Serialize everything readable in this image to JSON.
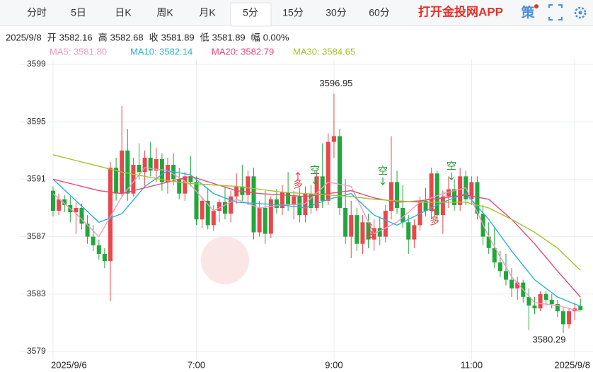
{
  "tabs": [
    "分时",
    "5日",
    "日K",
    "周K",
    "月K",
    "5分",
    "15分",
    "30分",
    "60分"
  ],
  "active_tab": "5分",
  "brand": "打开金投网APP",
  "strategy": "策",
  "info": {
    "date": "2025/9/8",
    "fields": [
      {
        "label": "开",
        "value": "3582.16"
      },
      {
        "label": "高",
        "value": "3582.68"
      },
      {
        "label": "收",
        "value": "3581.89"
      },
      {
        "label": "低",
        "value": "3581.89"
      },
      {
        "label": "幅",
        "value": "0.00%"
      }
    ]
  },
  "chart_data": {
    "type": "candlestick",
    "ohlc": [
      [
        3590.2,
        3590.5,
        3588.4,
        3588.8
      ],
      [
        3588.8,
        3590.0,
        3588.5,
        3589.6
      ],
      [
        3589.6,
        3589.9,
        3588.7,
        3589.2
      ],
      [
        3589.2,
        3589.8,
        3588.0,
        3588.7
      ],
      [
        3588.7,
        3589.4,
        3587.2,
        3589.0
      ],
      [
        3589.0,
        3589.3,
        3587.5,
        3587.9
      ],
      [
        3587.9,
        3588.5,
        3586.5,
        3587.0
      ],
      [
        3587.0,
        3587.8,
        3586.0,
        3586.4
      ],
      [
        3586.4,
        3586.8,
        3585.4,
        3585.8
      ],
      [
        3585.8,
        3586.2,
        3584.8,
        3585.3
      ],
      [
        3585.3,
        3592.2,
        3582.5,
        3591.8
      ],
      [
        3591.8,
        3592.5,
        3589.5,
        3590.0
      ],
      [
        3590.0,
        3596.1,
        3589.8,
        3593.0
      ],
      [
        3593.0,
        3594.5,
        3589.5,
        3590.0
      ],
      [
        3590.0,
        3592.5,
        3589.8,
        3592.0
      ],
      [
        3592.0,
        3593.5,
        3591.0,
        3591.5
      ],
      [
        3591.5,
        3593.0,
        3590.5,
        3592.5
      ],
      [
        3592.5,
        3593.6,
        3591.2,
        3591.6
      ],
      [
        3591.6,
        3593.2,
        3590.8,
        3592.4
      ],
      [
        3592.4,
        3592.8,
        3590.2,
        3590.8
      ],
      [
        3590.8,
        3592.5,
        3590.0,
        3592.0
      ],
      [
        3592.0,
        3592.8,
        3590.6,
        3591.0
      ],
      [
        3591.0,
        3591.8,
        3589.6,
        3590.0
      ],
      [
        3590.0,
        3591.5,
        3589.5,
        3591.2
      ],
      [
        3591.2,
        3592.6,
        3590.5,
        3590.8
      ],
      [
        3590.8,
        3591.2,
        3587.8,
        3588.2
      ],
      [
        3588.2,
        3589.8,
        3587.6,
        3589.5
      ],
      [
        3589.5,
        3590.4,
        3587.5,
        3587.8
      ],
      [
        3587.8,
        3589.2,
        3587.4,
        3588.8
      ],
      [
        3588.8,
        3589.6,
        3588.0,
        3589.4
      ],
      [
        3589.4,
        3590.5,
        3588.2,
        3588.6
      ],
      [
        3588.6,
        3590.2,
        3588.0,
        3589.8
      ],
      [
        3589.8,
        3591.4,
        3589.3,
        3590.5
      ],
      [
        3590.5,
        3592.0,
        3589.5,
        3589.9
      ],
      [
        3589.9,
        3591.6,
        3589.2,
        3591.2
      ],
      [
        3591.2,
        3591.8,
        3586.8,
        3587.3
      ],
      [
        3587.3,
        3589.5,
        3587.0,
        3589.0
      ],
      [
        3589.0,
        3590.2,
        3586.5,
        3587.2
      ],
      [
        3587.2,
        3589.8,
        3586.9,
        3589.6
      ],
      [
        3589.6,
        3590.3,
        3588.6,
        3589.0
      ],
      [
        3589.0,
        3590.6,
        3588.5,
        3590.1
      ],
      [
        3590.1,
        3591.5,
        3588.8,
        3589.2
      ],
      [
        3589.2,
        3590.2,
        3588.2,
        3589.8
      ],
      [
        3589.8,
        3590.4,
        3588.0,
        3588.5
      ],
      [
        3588.5,
        3590.5,
        3588.0,
        3590.0
      ],
      [
        3590.0,
        3590.6,
        3588.6,
        3589.0
      ],
      [
        3589.0,
        3591.6,
        3588.8,
        3591.2
      ],
      [
        3591.2,
        3593.5,
        3589.0,
        3589.5
      ],
      [
        3589.5,
        3594.2,
        3589.2,
        3593.6
      ],
      [
        3593.6,
        3596.95,
        3592.5,
        3594.0
      ],
      [
        3594.0,
        3594.5,
        3588.5,
        3589.0
      ],
      [
        3589.0,
        3591.0,
        3586.5,
        3587.0
      ],
      [
        3587.0,
        3589.5,
        3585.5,
        3588.5
      ],
      [
        3588.5,
        3589.0,
        3586.0,
        3586.5
      ],
      [
        3586.5,
        3588.5,
        3585.8,
        3588.0
      ],
      [
        3588.0,
        3588.6,
        3586.2,
        3586.8
      ],
      [
        3586.8,
        3588.2,
        3586.0,
        3587.6
      ],
      [
        3587.6,
        3588.4,
        3586.4,
        3587.0
      ],
      [
        3587.0,
        3589.2,
        3586.6,
        3588.8
      ],
      [
        3588.8,
        3594.0,
        3588.2,
        3590.8
      ],
      [
        3590.8,
        3591.6,
        3588.6,
        3589.0
      ],
      [
        3589.0,
        3590.6,
        3587.6,
        3588.0
      ],
      [
        3588.0,
        3588.5,
        3585.8,
        3586.8
      ],
      [
        3586.8,
        3588.2,
        3586.2,
        3587.8
      ],
      [
        3587.8,
        3589.8,
        3587.4,
        3589.5
      ],
      [
        3589.5,
        3590.4,
        3588.4,
        3588.8
      ],
      [
        3588.8,
        3591.8,
        3588.2,
        3591.4
      ],
      [
        3591.4,
        3591.6,
        3588.0,
        3588.5
      ],
      [
        3588.5,
        3590.2,
        3587.2,
        3589.8
      ],
      [
        3589.8,
        3591.2,
        3589.0,
        3590.3
      ],
      [
        3590.3,
        3591.0,
        3588.8,
        3589.2
      ],
      [
        3589.2,
        3591.8,
        3588.8,
        3591.2
      ],
      [
        3591.2,
        3591.6,
        3589.2,
        3589.6
      ],
      [
        3589.6,
        3591.2,
        3589.2,
        3590.8
      ],
      [
        3590.8,
        3591.2,
        3588.2,
        3588.6
      ],
      [
        3588.6,
        3589.2,
        3586.4,
        3587.0
      ],
      [
        3587.0,
        3588.0,
        3585.8,
        3586.2
      ],
      [
        3586.2,
        3587.6,
        3584.8,
        3585.2
      ],
      [
        3585.2,
        3586.0,
        3584.2,
        3584.6
      ],
      [
        3584.6,
        3585.8,
        3583.6,
        3584.0
      ],
      [
        3584.0,
        3584.8,
        3582.8,
        3583.4
      ],
      [
        3583.4,
        3584.2,
        3582.6,
        3583.8
      ],
      [
        3583.8,
        3584.0,
        3582.4,
        3582.8
      ],
      [
        3582.8,
        3583.4,
        3580.5,
        3582.2
      ],
      [
        3582.2,
        3582.8,
        3581.6,
        3582.0
      ],
      [
        3582.0,
        3583.2,
        3581.8,
        3583.0
      ],
      [
        3583.0,
        3583.2,
        3582.2,
        3582.6
      ],
      [
        3582.6,
        3583.0,
        3582.0,
        3582.3
      ],
      [
        3582.3,
        3582.6,
        3581.4,
        3581.8
      ],
      [
        3581.8,
        3582.0,
        3580.29,
        3580.9
      ],
      [
        3580.9,
        3582.0,
        3580.6,
        3581.8
      ],
      [
        3581.8,
        3582.4,
        3581.2,
        3582.0
      ],
      [
        3582.16,
        3582.68,
        3581.89,
        3581.89
      ]
    ],
    "up_color": "#e8474c",
    "down_color": "#1fa83a",
    "xlim": [
      -0.8,
      93.2
    ],
    "xticks": [
      {
        "value": 0,
        "label": "2025/9/6"
      },
      {
        "value": 25,
        "label": "7:00"
      },
      {
        "value": 49,
        "label": "9:00"
      },
      {
        "value": 73,
        "label": "11:00"
      },
      {
        "value": 91,
        "label": "2025/9/8"
      }
    ],
    "ylim": [
      3579,
      3599
    ],
    "yticks": [
      3599,
      3595,
      3591,
      3587,
      3583,
      3579
    ],
    "grid": true,
    "ma": [
      {
        "label": "MA5: 3581.80",
        "color": "#f29bbd",
        "x": [
          0,
          4,
          8,
          12,
          16,
          20,
          24,
          28,
          32,
          36,
          40,
          44,
          48,
          52,
          56,
          60,
          64,
          68,
          72,
          76,
          80,
          84,
          88,
          92
        ],
        "values": [
          3590.0,
          3588.6,
          3587.0,
          3589.8,
          3591.8,
          3591.6,
          3590.6,
          3588.8,
          3589.6,
          3589.0,
          3589.2,
          3589.3,
          3590.8,
          3590.5,
          3587.2,
          3588.0,
          3589.4,
          3590.0,
          3590.4,
          3587.0,
          3584.2,
          3582.4,
          3582.2,
          3581.8
        ]
      },
      {
        "label": "MA10: 3582.14",
        "color": "#2bb3d8",
        "x": [
          0,
          4,
          8,
          12,
          16,
          20,
          24,
          28,
          32,
          36,
          40,
          44,
          48,
          52,
          56,
          60,
          64,
          68,
          72,
          76,
          80,
          84,
          88,
          92
        ],
        "values": [
          3591.0,
          3589.5,
          3588.0,
          3588.6,
          3590.5,
          3591.6,
          3591.3,
          3590.0,
          3589.4,
          3589.3,
          3589.2,
          3589.0,
          3589.6,
          3590.0,
          3588.5,
          3587.8,
          3588.6,
          3589.4,
          3590.0,
          3588.2,
          3586.0,
          3584.0,
          3582.8,
          3582.14
        ]
      },
      {
        "label": "MA20: 3582.79",
        "color": "#e4497c",
        "x": [
          0,
          4,
          8,
          12,
          16,
          20,
          24,
          28,
          32,
          36,
          40,
          44,
          48,
          52,
          56,
          60,
          64,
          68,
          72,
          76,
          80,
          84,
          88,
          92
        ],
        "values": [
          3591.0,
          3590.6,
          3590.2,
          3590.0,
          3590.4,
          3590.8,
          3591.2,
          3590.7,
          3590.2,
          3590.0,
          3589.9,
          3589.8,
          3590.0,
          3590.2,
          3589.7,
          3589.4,
          3589.5,
          3589.7,
          3589.9,
          3589.6,
          3588.2,
          3586.5,
          3584.6,
          3582.79
        ]
      },
      {
        "label": "MA30: 3584.65",
        "color": "#a7c12b",
        "x": [
          0,
          4,
          8,
          12,
          16,
          20,
          24,
          28,
          32,
          36,
          40,
          44,
          48,
          52,
          56,
          60,
          64,
          68,
          72,
          76,
          80,
          84,
          88,
          92
        ],
        "values": [
          3592.7,
          3592.3,
          3591.9,
          3591.5,
          3591.2,
          3590.9,
          3590.7,
          3590.6,
          3590.5,
          3590.3,
          3590.1,
          3590.0,
          3589.9,
          3589.8,
          3589.6,
          3589.5,
          3589.4,
          3589.4,
          3589.4,
          3589.0,
          3588.2,
          3587.3,
          3586.2,
          3584.65
        ]
      }
    ],
    "high_label": 3596.95,
    "low_label": 3580.29,
    "signals": [
      {
        "text": "多",
        "kind": "long"
      },
      {
        "text": "空",
        "kind": "short"
      },
      {
        "text": "多",
        "kind": "long"
      },
      {
        "text": "空",
        "kind": "short"
      },
      {
        "text": "多",
        "kind": "long"
      },
      {
        "text": "空",
        "kind": "short"
      }
    ]
  }
}
